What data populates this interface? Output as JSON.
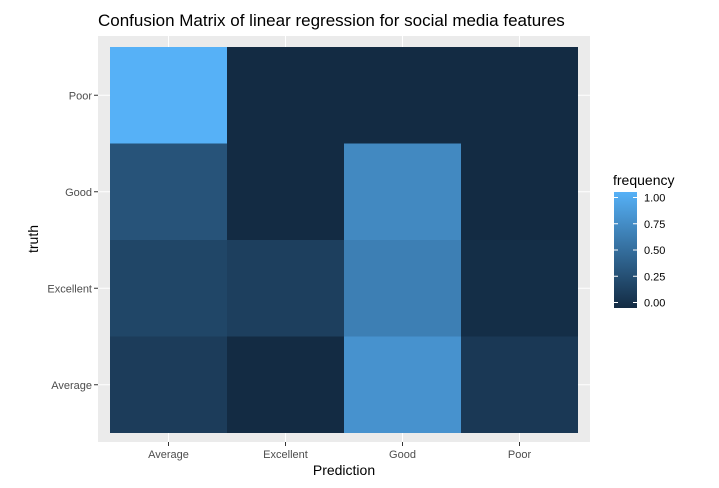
{
  "chart_data": {
    "type": "heatmap",
    "title": "Confusion Matrix of  linear regression for social media features",
    "xlabel": "Prediction",
    "ylabel": "truth",
    "x_categories": [
      "Average",
      "Excellent",
      "Good",
      "Poor"
    ],
    "y_categories": [
      "Average",
      "Excellent",
      "Good",
      "Poor"
    ],
    "cells": [
      {
        "truth": "Poor",
        "prediction": "Average",
        "frequency": 1.0
      },
      {
        "truth": "Poor",
        "prediction": "Excellent",
        "frequency": 0.0
      },
      {
        "truth": "Poor",
        "prediction": "Good",
        "frequency": 0.0
      },
      {
        "truth": "Poor",
        "prediction": "Poor",
        "frequency": 0.0
      },
      {
        "truth": "Good",
        "prediction": "Average",
        "frequency": 0.3
      },
      {
        "truth": "Good",
        "prediction": "Excellent",
        "frequency": 0.0
      },
      {
        "truth": "Good",
        "prediction": "Good",
        "frequency": 0.7
      },
      {
        "truth": "Good",
        "prediction": "Poor",
        "frequency": 0.0
      },
      {
        "truth": "Excellent",
        "prediction": "Average",
        "frequency": 0.2
      },
      {
        "truth": "Excellent",
        "prediction": "Excellent",
        "frequency": 0.15
      },
      {
        "truth": "Excellent",
        "prediction": "Good",
        "frequency": 0.63
      },
      {
        "truth": "Excellent",
        "prediction": "Poor",
        "frequency": 0.02
      },
      {
        "truth": "Average",
        "prediction": "Average",
        "frequency": 0.13
      },
      {
        "truth": "Average",
        "prediction": "Excellent",
        "frequency": 0.0
      },
      {
        "truth": "Average",
        "prediction": "Good",
        "frequency": 0.77
      },
      {
        "truth": "Average",
        "prediction": "Poor",
        "frequency": 0.1
      }
    ],
    "legend": {
      "title": "frequency",
      "placement": "right",
      "ticks": [
        1.0,
        0.75,
        0.5,
        0.25,
        0.0
      ],
      "tick_labels": [
        "1.00",
        "0.75",
        "0.50",
        "0.25",
        "0.00"
      ],
      "range": [
        0,
        1
      ],
      "low_color": "#132B43",
      "high_color": "#56B1F7"
    },
    "grid": true,
    "panel_background": "#EBEBEB"
  }
}
